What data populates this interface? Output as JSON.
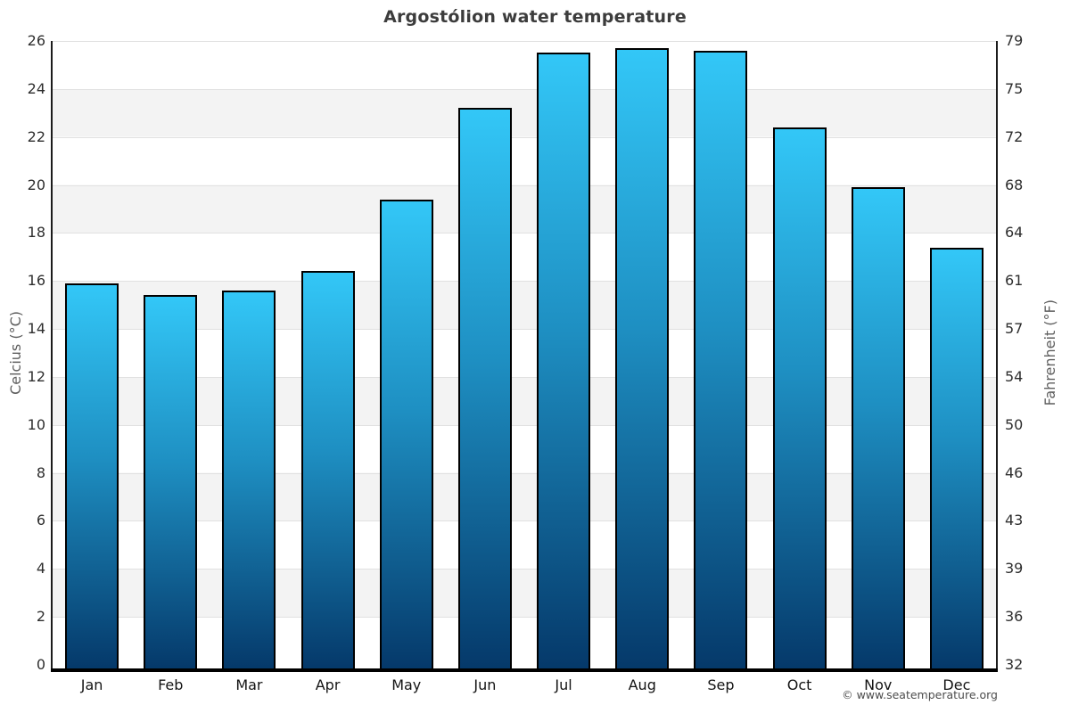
{
  "title": "Argostólion water temperature",
  "footer": "© www.seatemperature.org",
  "chart_data": {
    "type": "bar",
    "title": "Argostólion water temperature",
    "categories": [
      "Jan",
      "Feb",
      "Mar",
      "Apr",
      "May",
      "Jun",
      "Jul",
      "Aug",
      "Sep",
      "Oct",
      "Nov",
      "Dec"
    ],
    "values": [
      15.9,
      15.4,
      15.6,
      16.4,
      19.4,
      23.2,
      25.5,
      25.7,
      25.6,
      22.4,
      19.9,
      17.4
    ],
    "unit": "°C",
    "xlabel": "",
    "ylabel_left": "Celcius (°C)",
    "ylabel_right": "Fahrenheit (°F)",
    "ylim": [
      0,
      26
    ],
    "yticks_celsius": [
      0,
      2,
      4,
      6,
      8,
      10,
      12,
      14,
      16,
      18,
      20,
      22,
      24,
      26
    ],
    "yticks_fahrenheit": [
      32,
      36,
      39,
      43,
      46,
      50,
      54,
      57,
      61,
      64,
      68,
      72,
      75,
      79
    ],
    "grid": true,
    "legend": "none",
    "band_color": "#f3f3f3",
    "gridline_color": "#e1e1e1",
    "bar_color_top": "#33c7f7",
    "bar_color_mid": "#1e8fc2",
    "bar_color_bottom": "#05396a",
    "bar_border_color": "#000000"
  }
}
